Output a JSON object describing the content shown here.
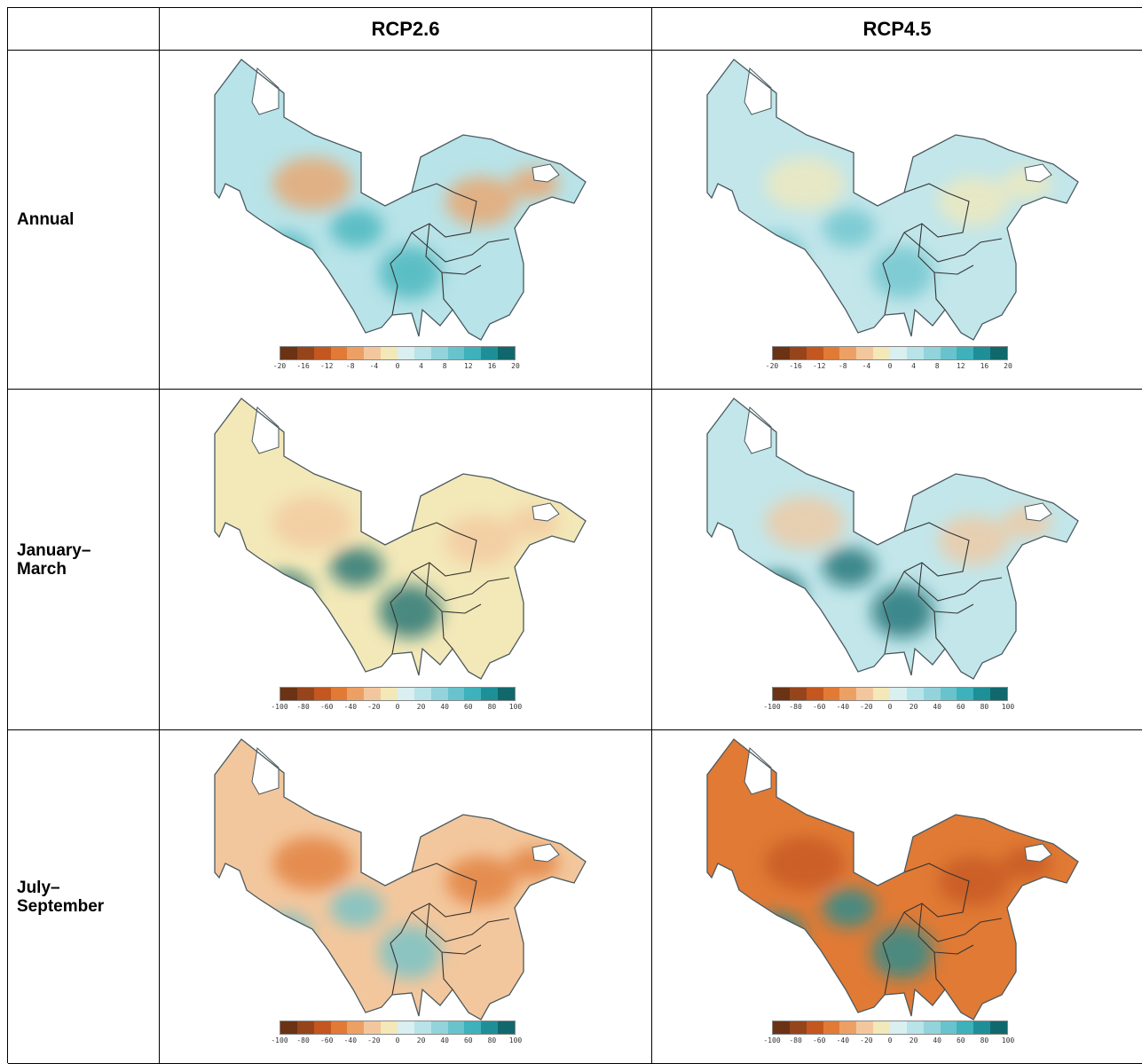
{
  "header": {
    "corner": "",
    "columns": [
      "RCP2.6",
      "RCP4.5"
    ]
  },
  "rows": [
    {
      "label": "Annual"
    },
    {
      "label": "January–\nMarch"
    },
    {
      "label": "July–\nSeptember"
    }
  ],
  "legends": {
    "annual": {
      "ticks": [
        "-20",
        "-16",
        "-12",
        "-8",
        "-4",
        "0",
        "4",
        "8",
        "12",
        "16",
        "20"
      ]
    },
    "seasonal": {
      "ticks": [
        "-100",
        "-80",
        "-60",
        "-40",
        "-20",
        "0",
        "20",
        "40",
        "60",
        "80",
        "100"
      ]
    }
  },
  "colors": {
    "scale": [
      "#6b3214",
      "#95441b",
      "#c4561f",
      "#e07a35",
      "#eda064",
      "#f3c79d",
      "#f3e8b8",
      "#d9eff0",
      "#b8e3e8",
      "#93d3db",
      "#69c3cc",
      "#3eb1ba",
      "#1e8f97",
      "#10686c"
    ],
    "outline": "#4a5a60"
  },
  "maps": [
    {
      "dominant": "#b8e3e8",
      "warm": "#eda064",
      "cool": "#3eb1ba"
    },
    {
      "dominant": "#c2e6ea",
      "warm": "#f3e8b8",
      "cool": "#69c3cc"
    },
    {
      "dominant": "#f3e8b8",
      "warm": "#f3c79d",
      "cool": "#10686c"
    },
    {
      "dominant": "#c2e6ea",
      "warm": "#f3c79d",
      "cool": "#10686c"
    },
    {
      "dominant": "#f3c79d",
      "warm": "#e07a35",
      "cool": "#69c3cc"
    },
    {
      "dominant": "#e07a35",
      "warm": "#c4561f",
      "cool": "#1e8f97"
    }
  ]
}
